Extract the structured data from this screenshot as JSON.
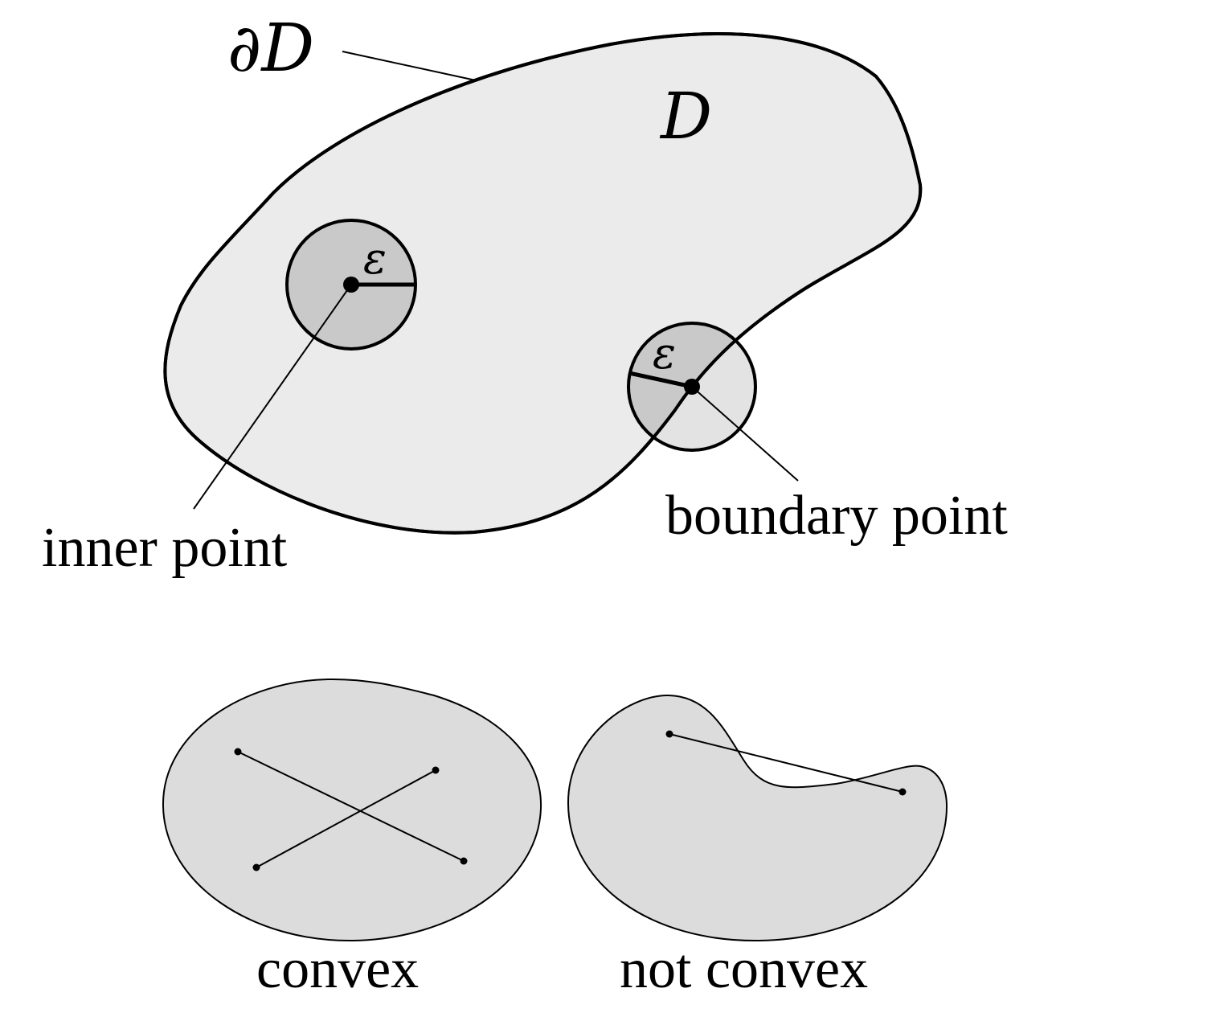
{
  "domain_diagram": {
    "symbols": {
      "boundary": "∂D",
      "domain": "D",
      "epsilon": "ε"
    },
    "labels": {
      "inner_point": "inner point",
      "boundary_point": "boundary point",
      "convex": "convex",
      "not_convex": "not convex"
    }
  },
  "colors": {
    "domain_fill": "#ebebeb",
    "ball_fill": "#c9c9c9",
    "outer_ball_fill": "#e3e3e3",
    "shape_fill": "#dcdcdc",
    "stroke": "#000000"
  }
}
